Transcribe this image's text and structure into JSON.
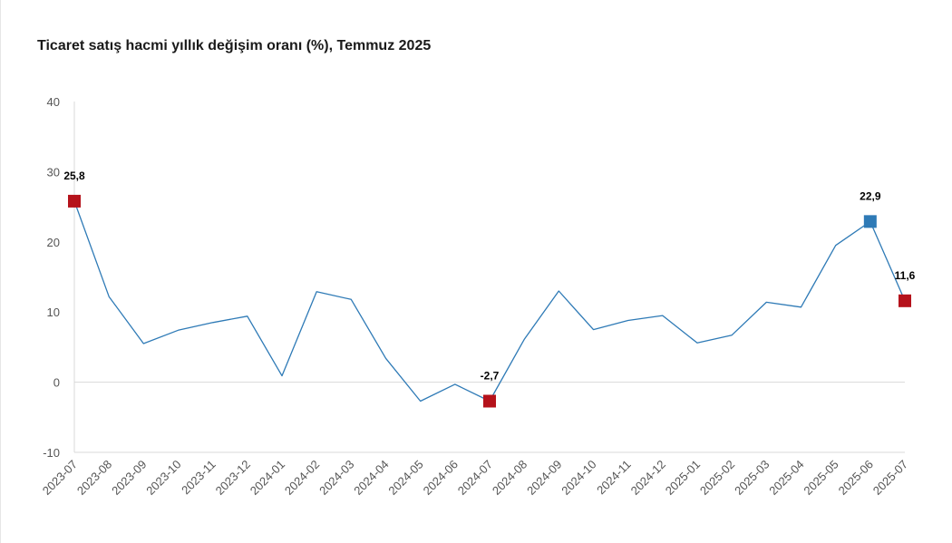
{
  "chart_data": {
    "type": "line",
    "title": "Ticaret satış hacmi yıllık değişim oranı (%), Temmuz 2025",
    "xlabel": "",
    "ylabel": "",
    "ylim": [
      -10,
      40
    ],
    "yticks": [
      -10,
      0,
      10,
      20,
      30,
      40
    ],
    "grid": false,
    "categories": [
      "2023-07",
      "2023-08",
      "2023-09",
      "2023-10",
      "2023-11",
      "2023-12",
      "2024-01",
      "2024-02",
      "2024-03",
      "2024-04",
      "2024-05",
      "2024-06",
      "2024-07",
      "2024-08",
      "2024-09",
      "2024-10",
      "2024-11",
      "2024-12",
      "2025-01",
      "2025-02",
      "2025-03",
      "2025-04",
      "2025-05",
      "2025-06",
      "2025-07"
    ],
    "series": [
      {
        "values": [
          25.8,
          12.2,
          5.5,
          7.4,
          8.5,
          9.4,
          0.9,
          12.9,
          11.8,
          3.4,
          -2.7,
          -0.3,
          -2.7,
          6.1,
          13.0,
          7.5,
          8.8,
          9.5,
          5.6,
          6.7,
          11.4,
          10.7,
          19.5,
          22.9,
          11.6
        ],
        "color": "#2e7ab6"
      }
    ],
    "highlights": [
      {
        "category": "2023-07",
        "value": 25.8,
        "label": "25,8",
        "color": "#b5121b"
      },
      {
        "category": "2024-07",
        "value": -2.7,
        "label": "-2,7",
        "color": "#b5121b"
      },
      {
        "category": "2025-06",
        "value": 22.9,
        "label": "22,9",
        "color": "#2e7ab6"
      },
      {
        "category": "2025-07",
        "value": 11.6,
        "label": "11,6",
        "color": "#b5121b"
      }
    ],
    "colors": {
      "line": "#2e7ab6",
      "axis": "#d9d9d9",
      "tick_text": "#555555"
    }
  }
}
